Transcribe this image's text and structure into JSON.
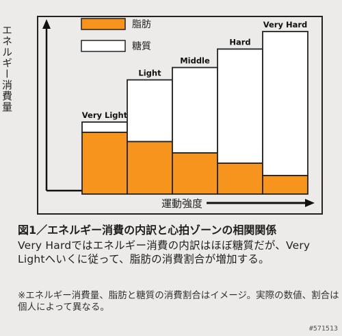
{
  "chart_data": {
    "type": "bar",
    "stacked": true,
    "categories": [
      "Very Light",
      "Light",
      "Middle",
      "Hard",
      "Very Hard"
    ],
    "series": [
      {
        "name": "脂肪",
        "values": [
          30,
          25.5,
          20,
          15,
          9
        ]
      },
      {
        "name": "糖質",
        "values": [
          5,
          30,
          41.5,
          55.5,
          70
        ]
      }
    ],
    "ylabel": "エネルギー消費量",
    "xlabel": "運動強度",
    "yticks": false,
    "legend_position": "top-left",
    "colors": {
      "fat": "#f7941e",
      "sugar": "#ffffff",
      "frame": "#222222"
    }
  },
  "caption": {
    "title": "図1／エネルギー消費の内訳と心拍ゾーンの相関関係",
    "body": "Very Hardではエネルギー消費の内訳はほぼ糖質だが、Very Lightへいくに従って、脂肪の消費割合が増加する。",
    "note": "※エネルギー消費量、脂肪と糖質の消費割合はイメージ。実際の数値、割合は個人によって異なる。"
  },
  "watermark": "#571513"
}
